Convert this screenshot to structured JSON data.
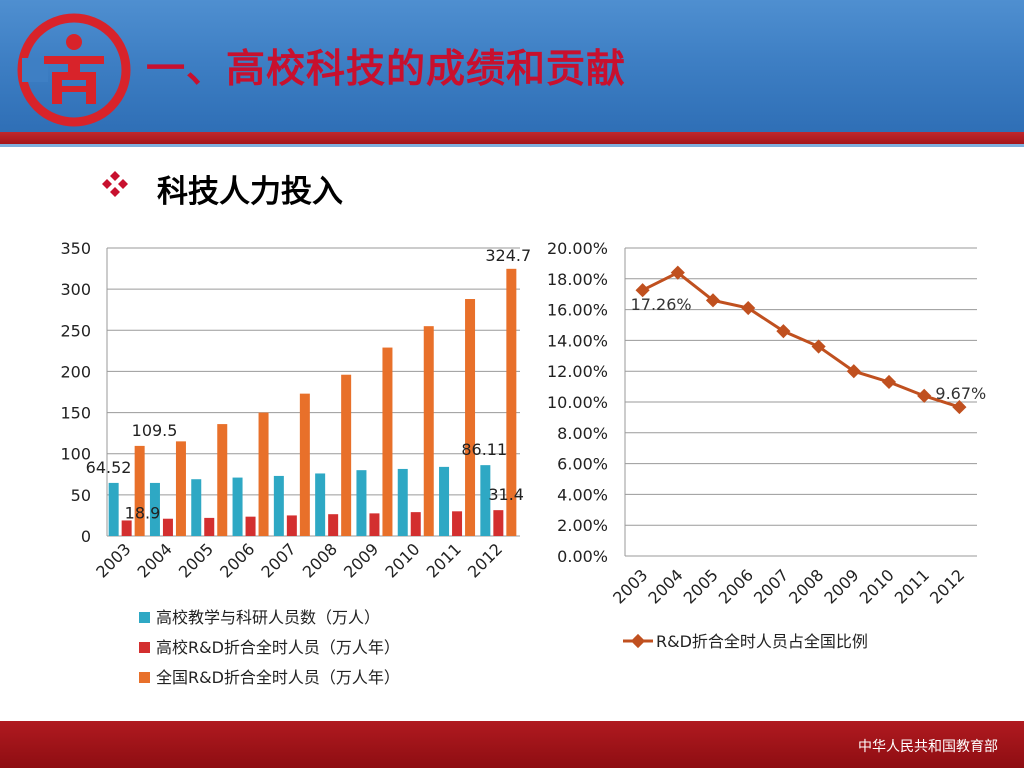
{
  "header": {
    "title": "一、高校科技的成绩和贡献",
    "logo_icon": "university-emblem-icon"
  },
  "section": {
    "bullet_icon": "diamond-bullet-icon",
    "subtitle": "科技人力投入"
  },
  "footer": {
    "org": "中华人民共和国教育部"
  },
  "colors": {
    "teal": "#2ea8c4",
    "red": "#d32f2f",
    "orange": "#e8702a",
    "line": "#c0501f",
    "title": "#c8102e"
  },
  "chart_data": [
    {
      "type": "bar",
      "categories": [
        "2003",
        "2004",
        "2005",
        "2006",
        "2007",
        "2008",
        "2009",
        "2010",
        "2011",
        "2012"
      ],
      "ylim": [
        0,
        350
      ],
      "yticks": [
        "0",
        "50",
        "100",
        "150",
        "200",
        "250",
        "300",
        "350"
      ],
      "grid": true,
      "legend_position": "bottom",
      "series": [
        {
          "name": "高校教学与科研人员数（万人）",
          "color": "#2ea8c4",
          "values": [
            64.52,
            64.5,
            69.0,
            71.0,
            73.0,
            76.0,
            80.0,
            81.5,
            84.0,
            86.11
          ]
        },
        {
          "name": "高校R&D折合全时人员（万人年）",
          "color": "#d32f2f",
          "values": [
            18.9,
            21.0,
            22.0,
            23.5,
            25.0,
            26.5,
            27.5,
            29.0,
            30.0,
            31.4
          ]
        },
        {
          "name": "全国R&D折合全时人员（万人年）",
          "color": "#e8702a",
          "values": [
            109.5,
            115.0,
            136.0,
            150.0,
            173.0,
            196.0,
            229.0,
            255.0,
            288.0,
            324.7
          ]
        }
      ],
      "data_labels": [
        {
          "series": 0,
          "index": 0,
          "text": "64.52"
        },
        {
          "series": 1,
          "index": 0,
          "text": "18.9"
        },
        {
          "series": 2,
          "index": 0,
          "text": "109.5"
        },
        {
          "series": 0,
          "index": 9,
          "text": "86.11"
        },
        {
          "series": 1,
          "index": 9,
          "text": "31.4"
        },
        {
          "series": 2,
          "index": 9,
          "text": "324.7"
        }
      ]
    },
    {
      "type": "line",
      "categories": [
        "2003",
        "2004",
        "2005",
        "2006",
        "2007",
        "2008",
        "2009",
        "2010",
        "2011",
        "2012"
      ],
      "ylim": [
        0,
        20
      ],
      "yticks": [
        "0.00%",
        "2.00%",
        "4.00%",
        "6.00%",
        "8.00%",
        "10.00%",
        "12.00%",
        "14.00%",
        "16.00%",
        "18.00%",
        "20.00%"
      ],
      "grid": true,
      "legend_position": "bottom",
      "series": [
        {
          "name": "R&D折合全时人员占全国比例",
          "color": "#c0501f",
          "values": [
            17.26,
            18.4,
            16.6,
            16.1,
            14.6,
            13.6,
            12.0,
            11.3,
            10.4,
            9.67
          ]
        }
      ],
      "data_labels": [
        {
          "series": 0,
          "index": 0,
          "text": "17.26%"
        },
        {
          "series": 0,
          "index": 9,
          "text": "9.67%"
        }
      ]
    }
  ]
}
